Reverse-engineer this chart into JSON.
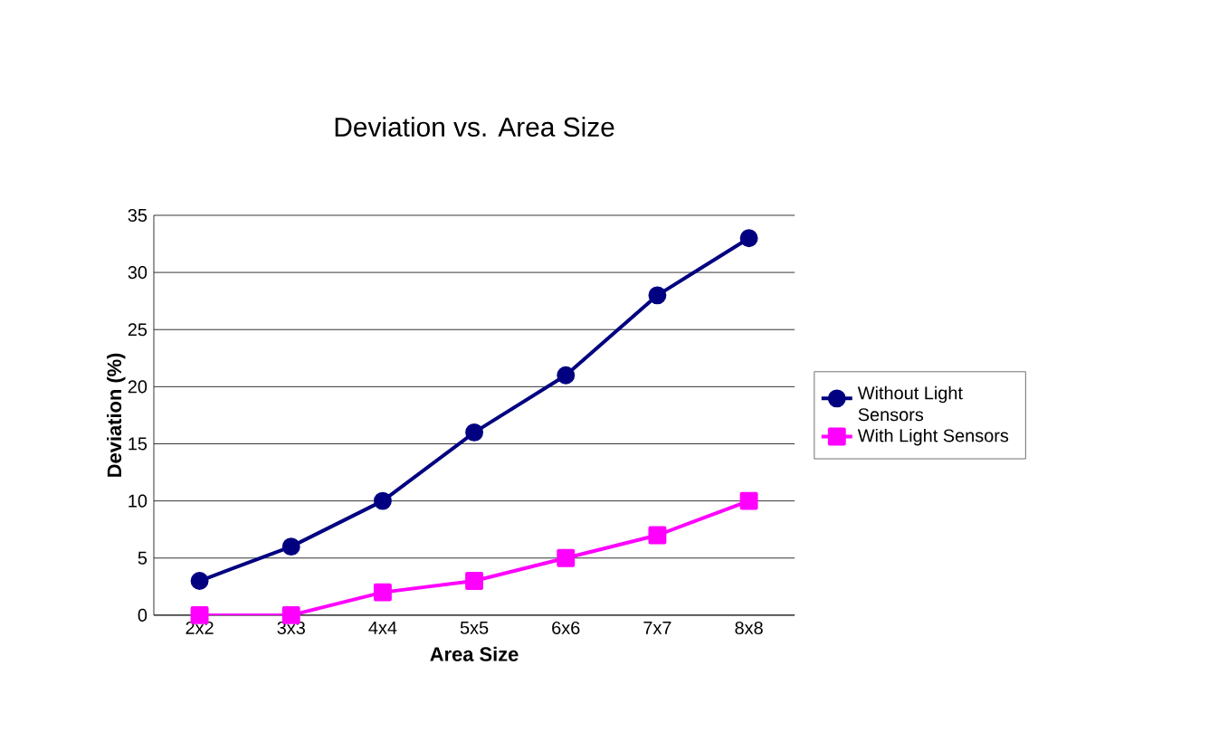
{
  "chart_data": {
    "type": "line",
    "title": "Deviation vs. Area Size",
    "xlabel": "Area Size",
    "ylabel": "Deviation (%)",
    "categories": [
      "2x2",
      "3x3",
      "4x4",
      "5x5",
      "6x6",
      "7x7",
      "8x8"
    ],
    "series": [
      {
        "name": "Without Light Sensors",
        "color": "#000080",
        "marker": "circle",
        "values": [
          3,
          6,
          10,
          16,
          21,
          28,
          33
        ]
      },
      {
        "name": "With Light Sensors",
        "color": "#ff00ff",
        "marker": "square",
        "values": [
          0,
          0,
          2,
          3,
          5,
          7,
          10
        ]
      }
    ],
    "ylim": [
      0,
      35
    ],
    "yticks": [
      0,
      5,
      10,
      15,
      20,
      25,
      30,
      35
    ],
    "grid": "y",
    "legend": "right",
    "line_style": "solid"
  }
}
